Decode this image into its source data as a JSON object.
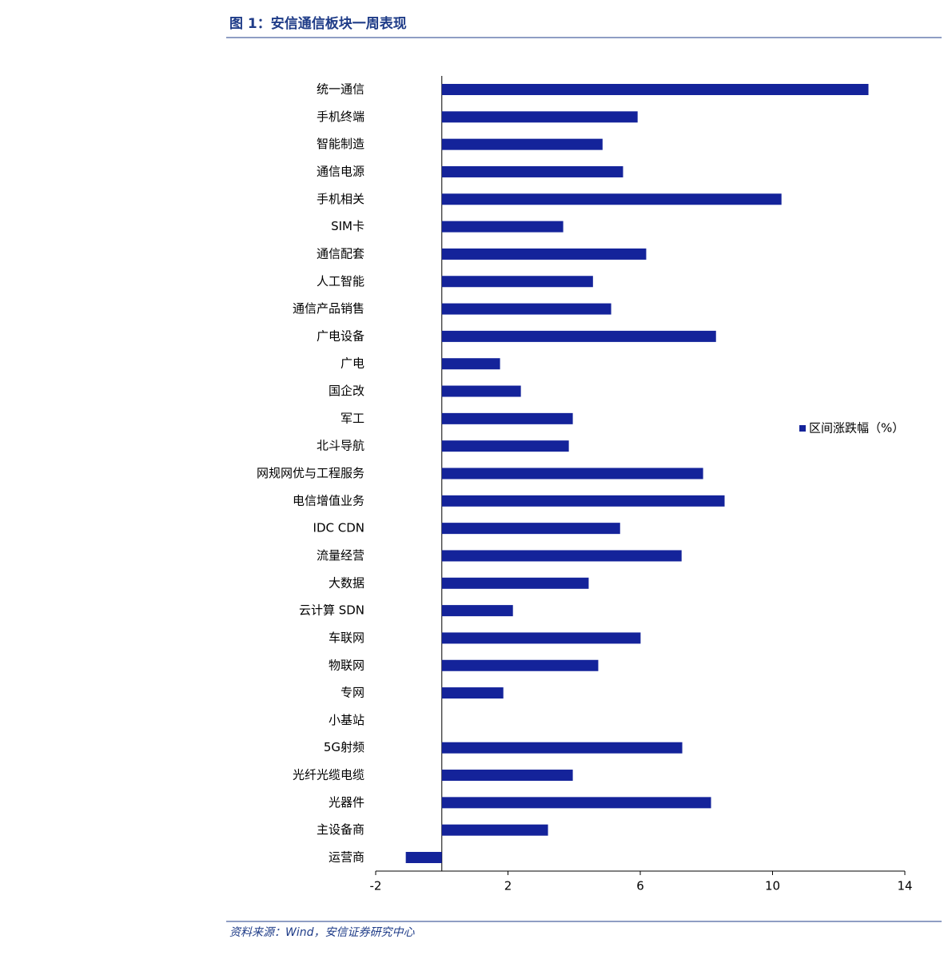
{
  "caption": "图 1：安信通信板块一周表现",
  "source": "资料来源：Wind，安信证券研究中心",
  "chart_data": {
    "type": "bar",
    "categories": [
      "统一通信",
      "手机终端",
      "智能制造",
      "通信电源",
      "手机相关",
      "SIM卡",
      "通信配套",
      "人工智能",
      "通信产品销售",
      "广电设备",
      "广电",
      "国企改",
      "军工",
      "北斗导航",
      "网规网优与工程服务",
      "电信增值业务",
      "IDC CDN",
      "流量经营",
      "大数据",
      "云计算 SDN",
      "车联网",
      "物联网",
      "专网",
      "小基站",
      "5G射频",
      "光纤光缆电缆",
      "光器件",
      "主设备商",
      "运营商"
    ],
    "series": [
      {
        "name": "区间涨跌幅（%）",
        "color": "#14239a",
        "values": [
          12.9,
          5.92,
          4.86,
          5.48,
          10.27,
          3.67,
          6.18,
          4.57,
          5.12,
          8.29,
          1.76,
          2.39,
          3.96,
          3.84,
          7.9,
          8.55,
          5.39,
          7.25,
          4.44,
          2.15,
          6.01,
          4.73,
          1.86,
          0,
          7.27,
          3.96,
          8.14,
          3.21,
          -1.09
        ]
      }
    ],
    "xlim": [
      -2,
      14
    ],
    "xticks": [
      -2,
      2,
      6,
      10,
      14
    ],
    "legend": "right"
  }
}
